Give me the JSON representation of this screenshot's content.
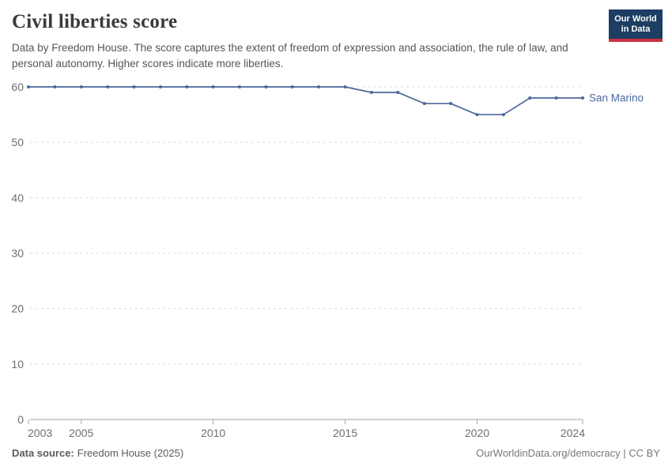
{
  "header": {
    "title": "Civil liberties score",
    "subtitle": "Data by Freedom House. The score captures the extent of freedom of expression and association, the rule of law, and personal autonomy. Higher scores indicate more liberties.",
    "logo": {
      "line1": "Our World",
      "line2": "in Data"
    }
  },
  "chart_data": {
    "type": "line",
    "title": "Civil liberties score",
    "xlabel": "",
    "ylabel": "",
    "x": [
      2003,
      2004,
      2005,
      2006,
      2007,
      2008,
      2009,
      2010,
      2011,
      2012,
      2013,
      2014,
      2015,
      2016,
      2017,
      2018,
      2019,
      2020,
      2021,
      2022,
      2023,
      2024
    ],
    "series": [
      {
        "name": "San Marino",
        "color": "#4d689c",
        "values": [
          60,
          60,
          60,
          60,
          60,
          60,
          60,
          60,
          60,
          60,
          60,
          60,
          60,
          59,
          59,
          57,
          57,
          55,
          55,
          58,
          58,
          58
        ]
      }
    ],
    "xlim": [
      2003,
      2024
    ],
    "ylim": [
      0,
      60
    ],
    "x_ticks": [
      2003,
      2005,
      2010,
      2015,
      2020,
      2024
    ],
    "y_ticks": [
      0,
      10,
      20,
      30,
      40,
      50,
      60
    ],
    "grid": "horizontal-dashed",
    "legend_position": "end-of-line"
  },
  "footer": {
    "source_label": "Data source:",
    "source_text": "Freedom House (2025)",
    "license": "OurWorldinData.org/democracy | CC BY"
  },
  "colors": {
    "accent_blue": "#4d689c",
    "logo_navy": "#1d3d63",
    "logo_red": "#c9303f",
    "grid": "#dcdcdc",
    "axis": "#a5a5a5",
    "text_dark": "#3a3a3a",
    "text_gray": "#555555",
    "tick_gray": "#6e6e6e",
    "footer_gray": "#5b5b5b",
    "footer_light": "#777777"
  }
}
